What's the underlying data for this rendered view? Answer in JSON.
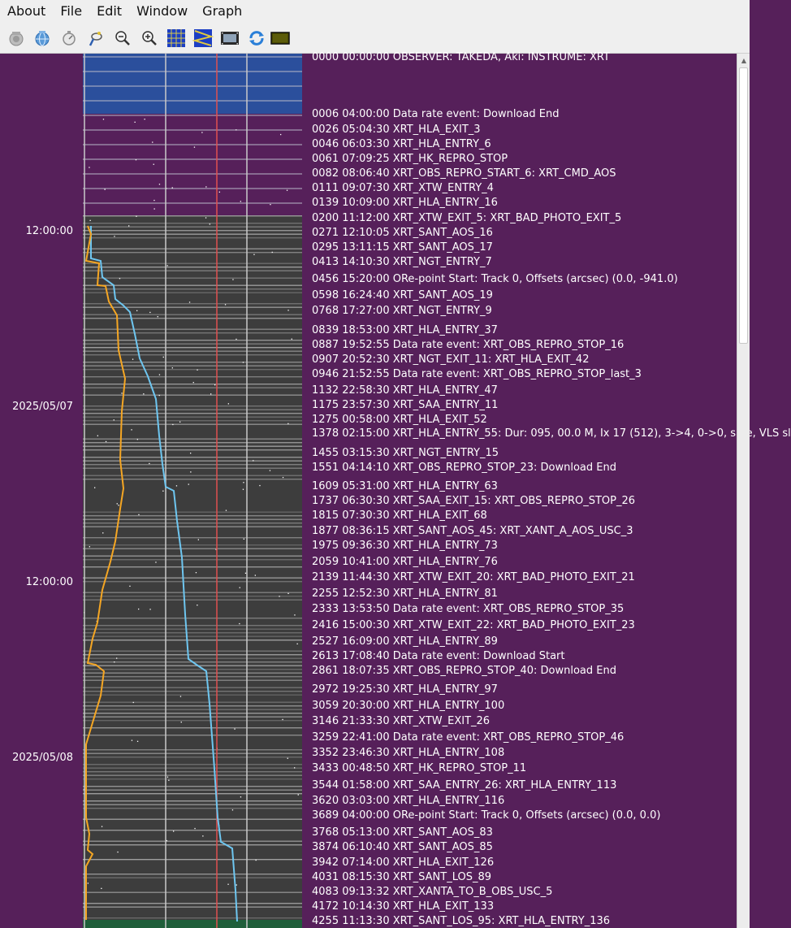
{
  "menu": {
    "about": "About",
    "file": "File",
    "edit": "Edit",
    "window": "Window",
    "graph": "Graph"
  },
  "toolbar": {
    "buttons": [
      {
        "icon": "camera-icon"
      },
      {
        "icon": "globe-icon"
      },
      {
        "icon": "stopwatch-icon"
      },
      {
        "icon": "pointer-icon"
      },
      {
        "icon": "zoom-out-icon"
      },
      {
        "icon": "zoom-in-icon"
      },
      {
        "icon": "grid-icon"
      },
      {
        "icon": "zigzag-icon"
      },
      {
        "icon": "film-icon"
      },
      {
        "icon": "refresh-icon"
      },
      {
        "icon": "panel-icon"
      }
    ]
  },
  "time_labels": {
    "t1": "12:00:00",
    "t2": "2025/05/07",
    "t3": "12:00:00",
    "t4": "2025/05/08"
  },
  "events": [
    "0000 00:00:00 OBSERVER: TAKEDA, Aki: INSTRUME: XRT",
    "0006 04:00:00 Data rate event: Download End",
    "0026 05:04:30 XRT_HLA_EXIT_3",
    "0046 06:03:30 XRT_HLA_ENTRY_6",
    "0061 07:09:25 XRT_HK_REPRO_STOP",
    "0082 08:06:40 XRT_OBS_REPRO_START_6: XRT_CMD_AOS",
    "0111 09:07:30 XRT_XTW_ENTRY_4",
    "0139 10:09:00 XRT_HLA_ENTRY_16",
    "0200 11:12:00 XRT_XTW_EXIT_5: XRT_BAD_PHOTO_EXIT_5",
    "0271 12:10:05 XRT_SANT_AOS_16",
    "0295 13:11:15 XRT_SANT_AOS_17",
    "0413 14:10:30 XRT_NGT_ENTRY_7",
    "0456 15:20:00 ORe-point Start: Track 0, Offsets (arcsec) (0.0, -941.0)",
    "0598 16:24:40 XRT_SANT_AOS_19",
    "0768 17:27:00 XRT_NGT_ENTRY_9",
    "0839 18:53:00 XRT_HLA_ENTRY_37",
    "0887 19:52:55 Data rate event: XRT_OBS_REPRO_STOP_16",
    "0907 20:52:30 XRT_NGT_EXIT_11: XRT_HLA_EXIT_42",
    "0946 21:52:55 Data rate event: XRT_OBS_REPRO_STOP_last_3",
    "1132 22:58:30 XRT_HLA_ENTRY_47",
    "1175 23:57:30 XRT_SAA_ENTRY_11",
    "1275 00:58:00 XRT_HLA_EXIT_52",
    "1378 02:15:00 XRT_HLA_ENTRY_55: Dur: 095, 00.0 M, Ix 17 (512), 3->4, 0->0, safe, VLS sl",
    "1455 03:15:30 XRT_NGT_ENTRY_15",
    "1551 04:14:10 XRT_OBS_REPRO_STOP_23: Download End",
    "1609 05:31:00 XRT_HLA_ENTRY_63",
    "1737 06:30:30 XRT_SAA_EXIT_15: XRT_OBS_REPRO_STOP_26",
    "1815 07:30:30 XRT_HLA_EXIT_68",
    "1877 08:36:15 XRT_SANT_AOS_45: XRT_XANT_A_AOS_USC_3",
    "1975 09:36:30 XRT_HLA_ENTRY_73",
    "2059 10:41:00 XRT_HLA_ENTRY_76",
    "2139 11:44:30 XRT_XTW_EXIT_20: XRT_BAD_PHOTO_EXIT_21",
    "2255 12:52:30 XRT_HLA_ENTRY_81",
    "2333 13:53:50 Data rate event: XRT_OBS_REPRO_STOP_35",
    "2416 15:00:30 XRT_XTW_EXIT_22: XRT_BAD_PHOTO_EXIT_23",
    "2527 16:09:00 XRT_HLA_ENTRY_89",
    "2613 17:08:40 Data rate event: Download Start",
    "2861 18:07:35 XRT_OBS_REPRO_STOP_40: Download End",
    "2972 19:25:30 XRT_HLA_ENTRY_97",
    "3059 20:30:00 XRT_HLA_ENTRY_100",
    "3146 21:33:30 XRT_XTW_EXIT_26",
    "3259 22:41:00 Data rate event: XRT_OBS_REPRO_STOP_46",
    "3352 23:46:30 XRT_HLA_ENTRY_108",
    "3433 00:48:50 XRT_HK_REPRO_STOP_11",
    "3544 01:58:00 XRT_SAA_ENTRY_26: XRT_HLA_ENTRY_113",
    "3620 03:03:00 XRT_HLA_ENTRY_116",
    "3689 04:00:00 ORe-point Start: Track 0, Offsets (arcsec) (0.0, 0.0)",
    "3768 05:13:00 XRT_SANT_AOS_83",
    "3874 06:10:40 XRT_SANT_AOS_85",
    "3942 07:14:00 XRT_HLA_EXIT_126",
    "4031 08:15:30 XRT_SANT_LOS_89",
    "4083 09:13:32 XRT_XANTA_TO_B_OBS_USC_5",
    "4172 10:14:30 XRT_HLA_EXIT_133",
    "4255 11:13:30 XRT_SANT_LOS_95: XRT_HLA_ENTRY_136"
  ],
  "colors": {
    "background": "#56205a",
    "track_dark": "#3d3d3d",
    "track_blue": "#2b4f9c",
    "track_green": "#1f5e3a",
    "marker_red": "#e05050",
    "line_orange": "#f5a623",
    "line_blue": "#6ec6f0"
  }
}
